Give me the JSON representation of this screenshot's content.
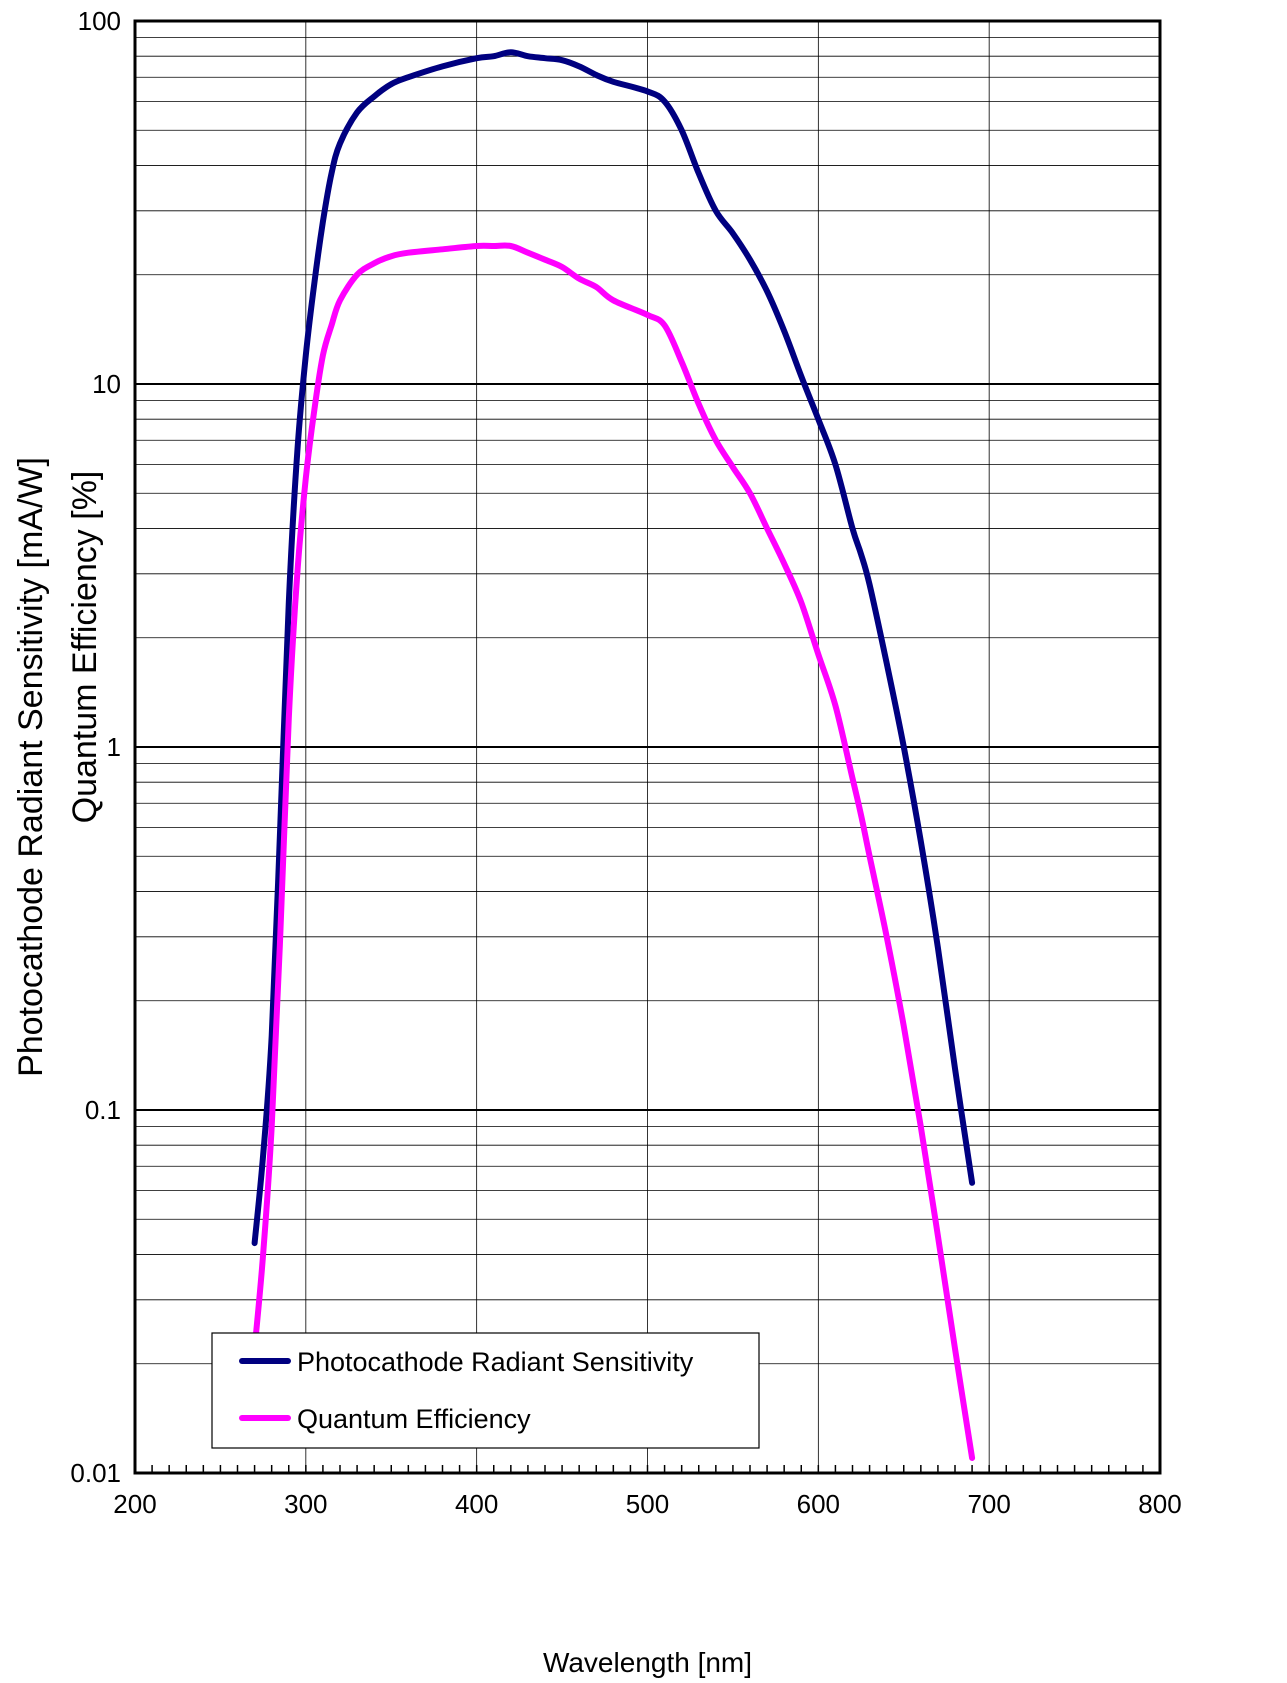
{
  "chart_data": {
    "type": "line",
    "title": "",
    "xlabel": "Wavelength [nm]",
    "ylabel_lines": [
      "Photocathode Radiant Sensitivity [mA/W]",
      "Quantum Efficiency [%]"
    ],
    "xlim": [
      200,
      800
    ],
    "ylim": [
      0.01,
      100
    ],
    "yscale": "log",
    "grid": true,
    "x_ticks": [
      "200",
      "300",
      "400",
      "500",
      "600",
      "700",
      "800"
    ],
    "y_ticks": [
      "0.01",
      "0.1",
      "1",
      "10",
      "100"
    ],
    "legend_position": "bottom-left",
    "series": [
      {
        "name": "Photocathode Radiant Sensitivity",
        "color": "#000080",
        "x": [
          270,
          275,
          280,
          285,
          290,
          295,
          300,
          305,
          310,
          315,
          320,
          330,
          340,
          350,
          360,
          380,
          400,
          410,
          420,
          430,
          440,
          450,
          460,
          470,
          480,
          500,
          510,
          520,
          530,
          540,
          550,
          560,
          570,
          580,
          590,
          600,
          610,
          620,
          625,
          630,
          640,
          650,
          660,
          670,
          680,
          690
        ],
        "y": [
          0.043,
          0.075,
          0.16,
          0.6,
          2.5,
          6.5,
          12,
          19,
          28,
          38,
          46,
          56,
          62,
          67,
          70,
          75,
          79,
          80,
          82,
          80,
          79,
          78,
          75,
          71,
          68,
          64,
          60,
          50,
          38,
          30,
          26,
          22,
          18,
          14,
          10.5,
          8,
          6,
          4,
          3.4,
          2.8,
          1.7,
          1,
          0.55,
          0.28,
          0.13,
          0.063
        ]
      },
      {
        "name": "Quantum Efficiency",
        "color": "#FF00FF",
        "x": [
          270,
          275,
          280,
          285,
          290,
          295,
          300,
          305,
          310,
          315,
          320,
          330,
          340,
          350,
          360,
          380,
          400,
          410,
          420,
          430,
          440,
          450,
          460,
          470,
          480,
          500,
          510,
          520,
          530,
          540,
          550,
          560,
          570,
          580,
          590,
          600,
          610,
          620,
          625,
          630,
          640,
          650,
          660,
          670,
          680,
          690
        ],
        "y": [
          0.022,
          0.04,
          0.09,
          0.3,
          1.2,
          3,
          5.5,
          8.5,
          12,
          14.5,
          17,
          20,
          21.5,
          22.5,
          23,
          23.5,
          24,
          24,
          24,
          23,
          22,
          21,
          19.5,
          18.5,
          17,
          15.5,
          14.5,
          11.5,
          8.8,
          7,
          5.9,
          5,
          4,
          3.2,
          2.5,
          1.8,
          1.3,
          0.82,
          0.65,
          0.5,
          0.3,
          0.17,
          0.09,
          0.045,
          0.022,
          0.011
        ]
      }
    ]
  }
}
